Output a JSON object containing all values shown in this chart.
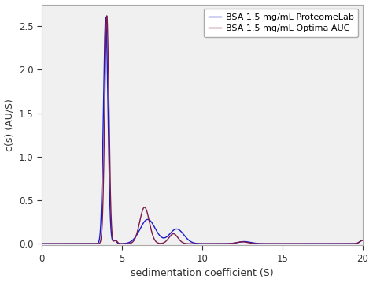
{
  "title": "",
  "xlabel": "sedimentation coefficient (S)",
  "ylabel": "c(s) (AU/S)",
  "xlim": [
    0,
    20
  ],
  "ylim": [
    -0.02,
    2.75
  ],
  "xticks": [
    0,
    5,
    10,
    15,
    20
  ],
  "yticks": [
    0.0,
    0.5,
    1.0,
    1.5,
    2.0,
    2.5
  ],
  "legend": [
    {
      "label": "BSA 1.5 mg/mL Optima AUC",
      "color": "#7B1A4B"
    },
    {
      "label": "BSA 1.5 mg/mL ProteomeLab",
      "color": "#1A1ACD"
    }
  ],
  "figsize": [
    4.74,
    3.59
  ],
  "dpi": 100,
  "background_color": "#ffffff",
  "axes_bg_color": "#f0f0f0"
}
